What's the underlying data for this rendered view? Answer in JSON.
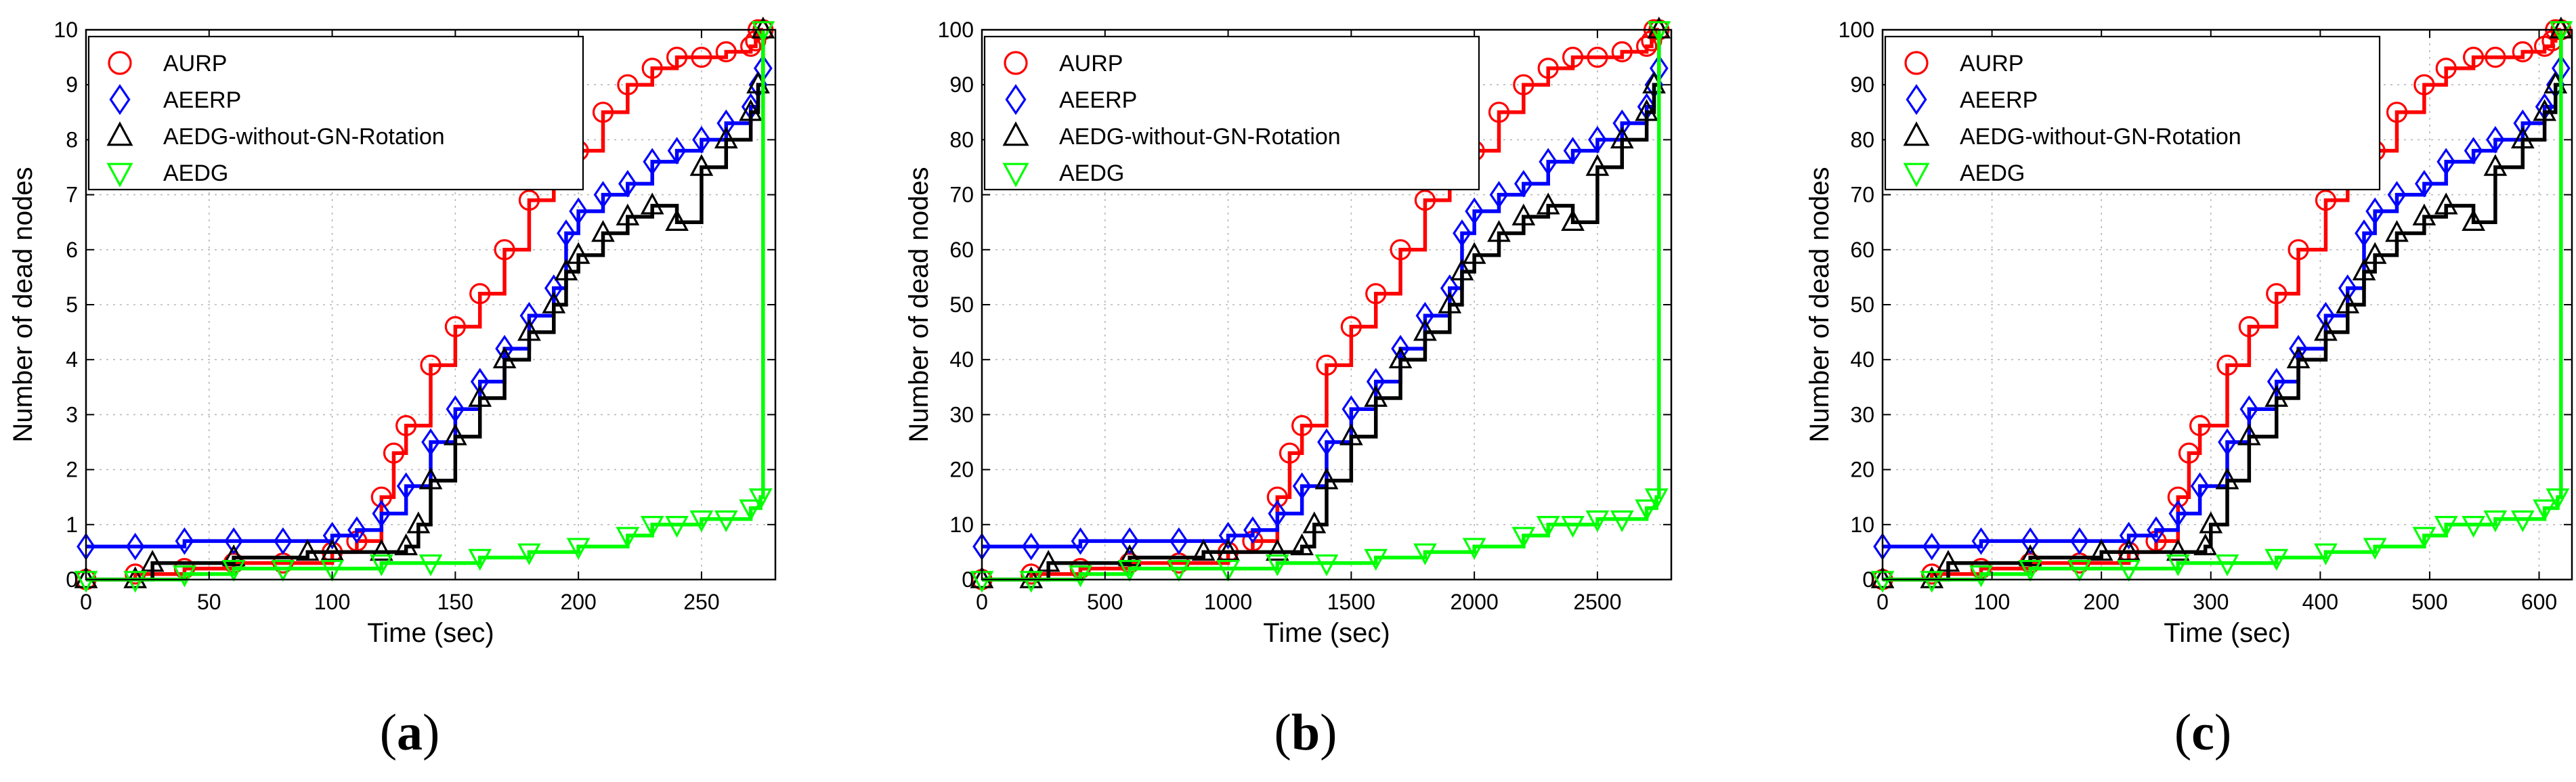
{
  "chart_data": [
    {
      "type": "line",
      "panel_label": "a",
      "xlabel": "Time (sec)",
      "ylabel": "Number of dead nodes",
      "xlim": [
        0,
        280
      ],
      "ylim": [
        0,
        10
      ],
      "xticks": [
        0,
        50,
        100,
        150,
        200,
        250
      ],
      "yticks": [
        0,
        1,
        2,
        3,
        4,
        5,
        6,
        7,
        8,
        9,
        10
      ],
      "grid": true,
      "legend_position": "top-left",
      "series": [
        {
          "name": "AURP",
          "color": "#ff0000",
          "marker": "circle",
          "x": [
            0,
            20,
            40,
            60,
            80,
            100,
            110,
            120,
            125,
            130,
            140,
            150,
            160,
            170,
            180,
            190,
            200,
            210,
            220,
            230,
            240,
            250,
            260,
            270,
            272,
            273,
            275
          ],
          "y": [
            0,
            0.1,
            0.2,
            0.3,
            0.3,
            0.5,
            0.7,
            1.5,
            2.3,
            2.8,
            3.9,
            4.6,
            5.2,
            6.0,
            6.9,
            7.3,
            7.8,
            8.5,
            9.0,
            9.3,
            9.5,
            9.5,
            9.6,
            9.7,
            9.8,
            10,
            10
          ]
        },
        {
          "name": "AEERP",
          "color": "#0000ff",
          "marker": "diamond",
          "x": [
            0,
            20,
            40,
            60,
            80,
            100,
            110,
            120,
            130,
            140,
            150,
            160,
            170,
            180,
            190,
            195,
            200,
            210,
            220,
            230,
            240,
            250,
            260,
            270,
            273,
            275
          ],
          "y": [
            0.6,
            0.6,
            0.7,
            0.7,
            0.7,
            0.8,
            0.9,
            1.2,
            1.7,
            2.5,
            3.1,
            3.6,
            4.2,
            4.8,
            5.3,
            6.3,
            6.7,
            7.0,
            7.2,
            7.6,
            7.8,
            8.0,
            8.3,
            8.6,
            9.0,
            9.3
          ]
        },
        {
          "name": "AEDG-without-GN-Rotation",
          "color": "#000000",
          "marker": "triangle-up",
          "x": [
            0,
            20,
            27,
            60,
            90,
            100,
            120,
            130,
            135,
            140,
            150,
            160,
            170,
            180,
            190,
            195,
            200,
            210,
            220,
            230,
            240,
            250,
            260,
            270,
            273,
            275
          ],
          "y": [
            0,
            0,
            0.3,
            0.4,
            0.5,
            0.5,
            0.5,
            0.6,
            1.0,
            1.8,
            2.6,
            3.3,
            4.0,
            4.5,
            5.0,
            5.6,
            5.9,
            6.3,
            6.6,
            6.8,
            6.5,
            7.5,
            8.0,
            8.5,
            9.0,
            10
          ]
        },
        {
          "name": "AEDG",
          "color": "#00ff00",
          "marker": "triangle-down",
          "x": [
            0,
            20,
            40,
            60,
            80,
            100,
            120,
            140,
            160,
            180,
            200,
            220,
            230,
            240,
            250,
            260,
            270,
            274,
            275
          ],
          "y": [
            0,
            0,
            0.1,
            0.2,
            0.2,
            0.2,
            0.3,
            0.3,
            0.4,
            0.5,
            0.6,
            0.8,
            1.0,
            1.0,
            1.1,
            1.1,
            1.3,
            1.5,
            10
          ]
        }
      ]
    },
    {
      "type": "line",
      "panel_label": "b",
      "xlabel": "Time (sec)",
      "ylabel": "Number of dead nodes",
      "xlim": [
        0,
        2800
      ],
      "ylim": [
        0,
        100
      ],
      "xticks": [
        0,
        500,
        1000,
        1500,
        2000,
        2500
      ],
      "yticks": [
        0,
        10,
        20,
        30,
        40,
        50,
        60,
        70,
        80,
        90,
        100
      ],
      "grid": true,
      "legend_position": "top-left",
      "series": [
        {
          "name": "AURP",
          "color": "#ff0000",
          "marker": "circle",
          "x": [
            0,
            200,
            400,
            600,
            800,
            1000,
            1100,
            1200,
            1250,
            1300,
            1400,
            1500,
            1600,
            1700,
            1800,
            1900,
            2000,
            2100,
            2200,
            2300,
            2400,
            2500,
            2600,
            2700,
            2720,
            2730,
            2750
          ],
          "y": [
            0,
            1,
            2,
            3,
            3,
            5,
            7,
            15,
            23,
            28,
            39,
            46,
            52,
            60,
            69,
            73,
            78,
            85,
            90,
            93,
            95,
            95,
            96,
            97,
            98,
            100,
            100
          ]
        },
        {
          "name": "AEERP",
          "color": "#0000ff",
          "marker": "diamond",
          "x": [
            0,
            200,
            400,
            600,
            800,
            1000,
            1100,
            1200,
            1300,
            1400,
            1500,
            1600,
            1700,
            1800,
            1900,
            1950,
            2000,
            2100,
            2200,
            2300,
            2400,
            2500,
            2600,
            2700,
            2730,
            2750
          ],
          "y": [
            6,
            6,
            7,
            7,
            7,
            8,
            9,
            12,
            17,
            25,
            31,
            36,
            42,
            48,
            53,
            63,
            67,
            70,
            72,
            76,
            78,
            80,
            83,
            86,
            90,
            93
          ]
        },
        {
          "name": "AEDG-without-GN-Rotation",
          "color": "#000000",
          "marker": "triangle-up",
          "x": [
            0,
            200,
            270,
            600,
            900,
            1000,
            1200,
            1300,
            1350,
            1400,
            1500,
            1600,
            1700,
            1800,
            1900,
            1950,
            2000,
            2100,
            2200,
            2300,
            2400,
            2500,
            2600,
            2700,
            2730,
            2750
          ],
          "y": [
            0,
            0,
            3,
            4,
            5,
            5,
            5,
            6,
            10,
            18,
            26,
            33,
            40,
            45,
            50,
            56,
            59,
            63,
            66,
            68,
            65,
            75,
            80,
            85,
            90,
            100
          ]
        },
        {
          "name": "AEDG",
          "color": "#00ff00",
          "marker": "triangle-down",
          "x": [
            0,
            200,
            400,
            600,
            800,
            1000,
            1200,
            1400,
            1600,
            1800,
            2000,
            2200,
            2300,
            2400,
            2500,
            2600,
            2700,
            2740,
            2750
          ],
          "y": [
            0,
            0,
            1,
            2,
            2,
            2,
            3,
            3,
            4,
            5,
            6,
            8,
            10,
            10,
            11,
            11,
            13,
            15,
            100
          ]
        }
      ]
    },
    {
      "type": "line",
      "panel_label": "c",
      "xlabel": "Time (sec)",
      "ylabel": "Number of dead nodes",
      "xlim": [
        0,
        630
      ],
      "ylim": [
        0,
        100
      ],
      "xticks": [
        0,
        100,
        200,
        300,
        400,
        500,
        600
      ],
      "yticks": [
        0,
        10,
        20,
        30,
        40,
        50,
        60,
        70,
        80,
        90,
        100
      ],
      "grid": true,
      "legend_position": "top-left",
      "series": [
        {
          "name": "AURP",
          "color": "#ff0000",
          "marker": "circle",
          "x": [
            0,
            45,
            90,
            135,
            180,
            225,
            250,
            270,
            280,
            290,
            315,
            335,
            360,
            380,
            405,
            425,
            450,
            470,
            495,
            515,
            540,
            560,
            585,
            605,
            612,
            615,
            620
          ],
          "y": [
            0,
            1,
            2,
            3,
            3,
            5,
            7,
            15,
            23,
            28,
            39,
            46,
            52,
            60,
            69,
            73,
            78,
            85,
            90,
            93,
            95,
            95,
            96,
            97,
            98,
            100,
            100
          ]
        },
        {
          "name": "AEERP",
          "color": "#0000ff",
          "marker": "diamond",
          "x": [
            0,
            45,
            90,
            135,
            180,
            225,
            250,
            270,
            290,
            315,
            335,
            360,
            380,
            405,
            425,
            440,
            450,
            470,
            495,
            515,
            540,
            560,
            585,
            605,
            615,
            620
          ],
          "y": [
            6,
            6,
            7,
            7,
            7,
            8,
            9,
            12,
            17,
            25,
            31,
            36,
            42,
            48,
            53,
            63,
            67,
            70,
            72,
            76,
            78,
            80,
            83,
            86,
            90,
            93
          ]
        },
        {
          "name": "AEDG-without-GN-Rotation",
          "color": "#000000",
          "marker": "triangle-up",
          "x": [
            0,
            45,
            60,
            135,
            200,
            225,
            270,
            295,
            300,
            315,
            335,
            360,
            380,
            405,
            425,
            440,
            450,
            470,
            495,
            515,
            540,
            560,
            585,
            605,
            615,
            620
          ],
          "y": [
            0,
            0,
            3,
            4,
            5,
            5,
            5,
            6,
            10,
            18,
            26,
            33,
            40,
            45,
            50,
            56,
            59,
            63,
            66,
            68,
            65,
            75,
            80,
            85,
            90,
            100
          ]
        },
        {
          "name": "AEDG",
          "color": "#00ff00",
          "marker": "triangle-down",
          "x": [
            0,
            45,
            90,
            135,
            180,
            225,
            270,
            315,
            360,
            405,
            450,
            495,
            515,
            540,
            560,
            585,
            605,
            617,
            620
          ],
          "y": [
            0,
            0,
            1,
            2,
            2,
            2,
            3,
            3,
            4,
            5,
            6,
            8,
            10,
            10,
            11,
            11,
            13,
            15,
            100
          ]
        }
      ]
    }
  ]
}
